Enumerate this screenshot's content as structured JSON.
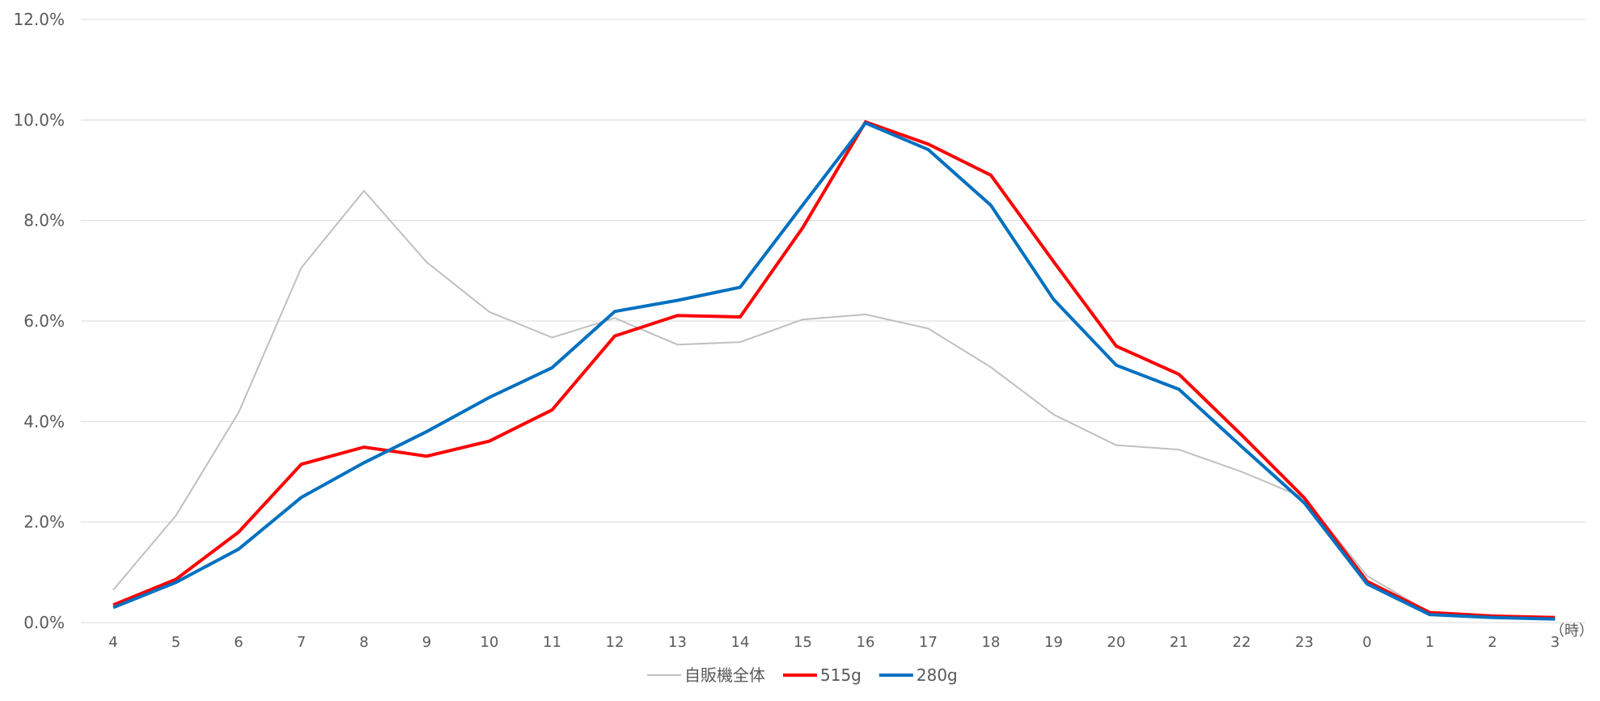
{
  "chart_data": {
    "type": "line",
    "title": "",
    "xlabel": "",
    "ylabel": "",
    "x_unit_label": "（時）",
    "categories": [
      "4",
      "5",
      "6",
      "7",
      "8",
      "9",
      "10",
      "11",
      "12",
      "13",
      "14",
      "15",
      "16",
      "17",
      "18",
      "19",
      "20",
      "21",
      "22",
      "23",
      "0",
      "1",
      "2",
      "3"
    ],
    "ylim": [
      0,
      12
    ],
    "yticks": [
      0,
      2,
      4,
      6,
      8,
      10,
      12
    ],
    "ytick_labels": [
      "0.0%",
      "2.0%",
      "4.0%",
      "6.0%",
      "8.0%",
      "10.0%",
      "12.0%"
    ],
    "grid": true,
    "legend_position": "bottom",
    "series": [
      {
        "name": "自販機全体",
        "color": "#bfbfbf",
        "width": 2,
        "values": [
          0.65,
          2.13,
          4.18,
          7.06,
          8.59,
          7.17,
          6.18,
          5.67,
          6.06,
          5.53,
          5.58,
          6.03,
          6.13,
          5.85,
          5.08,
          4.14,
          3.53,
          3.44,
          3.0,
          2.48,
          0.93,
          0.2,
          0.13,
          0.12
        ]
      },
      {
        "name": "515g",
        "color": "#ff0000",
        "width": 4,
        "values": [
          0.35,
          0.86,
          1.8,
          3.15,
          3.49,
          3.31,
          3.61,
          4.23,
          5.7,
          6.11,
          6.08,
          7.86,
          9.96,
          9.52,
          8.9,
          7.18,
          5.5,
          4.94,
          3.73,
          2.48,
          0.82,
          0.2,
          0.13,
          0.1
        ]
      },
      {
        "name": "280g",
        "color": "#0070c0",
        "width": 4,
        "values": [
          0.3,
          0.8,
          1.46,
          2.49,
          3.18,
          3.8,
          4.48,
          5.07,
          6.19,
          6.41,
          6.67,
          8.31,
          9.94,
          9.41,
          8.3,
          6.43,
          5.12,
          4.64,
          3.5,
          2.38,
          0.77,
          0.16,
          0.1,
          0.07
        ]
      }
    ]
  }
}
